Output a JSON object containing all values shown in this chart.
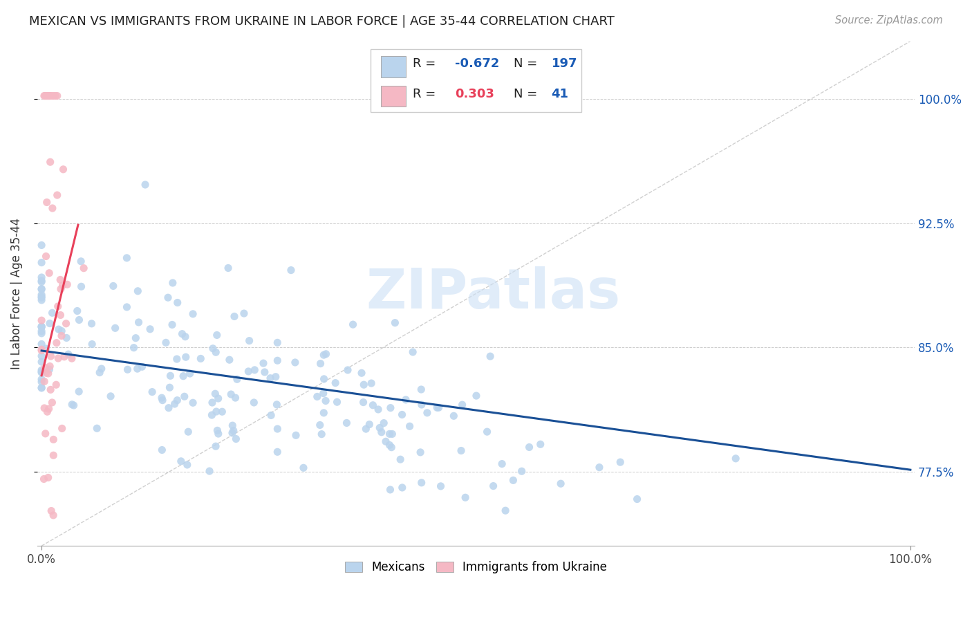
{
  "title": "MEXICAN VS IMMIGRANTS FROM UKRAINE IN LABOR FORCE | AGE 35-44 CORRELATION CHART",
  "source": "Source: ZipAtlas.com",
  "ylabel": "In Labor Force | Age 35-44",
  "xlim": [
    0.0,
    1.0
  ],
  "ylim": [
    0.73,
    1.035
  ],
  "yticks": [
    0.775,
    0.85,
    0.925,
    1.0
  ],
  "ytick_labels": [
    "77.5%",
    "85.0%",
    "92.5%",
    "100.0%"
  ],
  "xtick_labels": [
    "0.0%",
    "100.0%"
  ],
  "xticks": [
    0.0,
    1.0
  ],
  "blue_R": -0.672,
  "blue_N": 197,
  "pink_R": 0.303,
  "pink_N": 41,
  "blue_color": "#bad4ed",
  "blue_line_color": "#1a5096",
  "pink_color": "#f5b8c4",
  "pink_line_color": "#e8405a",
  "diagonal_color": "#d0d0d0",
  "watermark": "ZIPatlas",
  "background_color": "#ffffff",
  "legend_blue_R_color": "#1a5bb5",
  "legend_blue_N_color": "#1a5bb5",
  "legend_pink_R_color": "#e8405a",
  "legend_pink_N_color": "#1a5bb5",
  "blue_line_x0": 0.0,
  "blue_line_y0": 0.848,
  "blue_line_x1": 1.0,
  "blue_line_y1": 0.776,
  "pink_line_x0": 0.0,
  "pink_line_y0": 0.833,
  "pink_line_x1": 0.042,
  "pink_line_y1": 0.924
}
